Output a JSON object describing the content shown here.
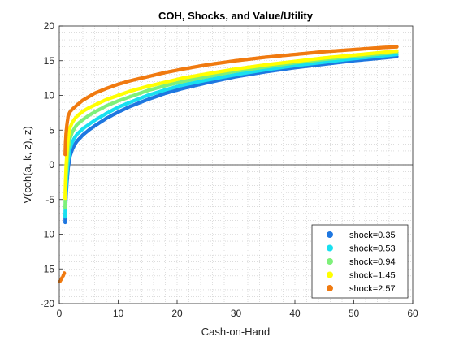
{
  "chart_data": {
    "type": "scatter",
    "title": "COH, Shocks, and Value/Utility",
    "xlabel": "Cash-on-Hand",
    "ylabel": "V(coh(a, k, z), z)",
    "xlim": [
      0,
      60
    ],
    "ylim": [
      -20,
      20
    ],
    "xticks": [
      0,
      10,
      20,
      30,
      40,
      50,
      60
    ],
    "yticks": [
      -20,
      -15,
      -10,
      -5,
      0,
      5,
      10,
      15,
      20
    ],
    "grid": "minor-dotted",
    "zero_line": true,
    "legend_position": "bottom-right",
    "series": [
      {
        "name": "shock=0.35",
        "color": "#1f77e0",
        "x": [
          1.0,
          1.05,
          1.15,
          1.3,
          1.5,
          1.8,
          2.2,
          2.6,
          3,
          4,
          5,
          6,
          8,
          10,
          12,
          15,
          18,
          21,
          25,
          30,
          35,
          40,
          45,
          50,
          55,
          57.3
        ],
        "y": [
          -8.3,
          -6.2,
          -4.5,
          -2.5,
          -0.5,
          1.2,
          2.2,
          2.9,
          3.4,
          4.3,
          5.0,
          5.6,
          6.7,
          7.6,
          8.4,
          9.4,
          10.3,
          11.0,
          11.8,
          12.7,
          13.4,
          14.0,
          14.5,
          15.0,
          15.4,
          15.6
        ]
      },
      {
        "name": "shock=0.53",
        "color": "#18e0f0",
        "x": [
          1.0,
          1.05,
          1.15,
          1.3,
          1.5,
          1.8,
          2.2,
          2.6,
          3,
          4,
          5,
          6,
          8,
          10,
          12,
          15,
          18,
          21,
          25,
          30,
          35,
          40,
          45,
          50,
          55,
          57.3
        ],
        "y": [
          -7.5,
          -5.3,
          -3.4,
          -1.3,
          0.6,
          2.3,
          3.3,
          3.9,
          4.4,
          5.2,
          5.8,
          6.4,
          7.4,
          8.3,
          9.0,
          10.0,
          10.8,
          11.5,
          12.2,
          13.0,
          13.7,
          14.3,
          14.8,
          15.3,
          15.7,
          15.9
        ]
      },
      {
        "name": "shock=0.94",
        "color": "#7ef07a",
        "x": [
          1.0,
          1.05,
          1.15,
          1.3,
          1.5,
          1.8,
          2.2,
          2.6,
          3,
          4,
          5,
          6,
          8,
          10,
          12,
          15,
          18,
          21,
          25,
          30,
          35,
          40,
          45,
          50,
          55,
          57.3
        ],
        "y": [
          -6.2,
          -4.0,
          -2.0,
          0.2,
          2.2,
          3.8,
          4.7,
          5.3,
          5.8,
          6.5,
          7.1,
          7.6,
          8.5,
          9.2,
          9.8,
          10.7,
          11.4,
          12.0,
          12.7,
          13.5,
          14.1,
          14.7,
          15.2,
          15.6,
          16.0,
          16.2
        ]
      },
      {
        "name": "shock=1.45",
        "color": "#ffff00",
        "x": [
          1.0,
          1.05,
          1.15,
          1.3,
          1.5,
          1.8,
          2.2,
          2.6,
          3,
          4,
          5,
          6,
          8,
          10,
          12,
          15,
          18,
          21,
          25,
          30,
          35,
          40,
          45,
          50,
          55,
          57.3
        ],
        "y": [
          -4.8,
          -2.6,
          -0.4,
          1.8,
          3.8,
          5.3,
          6.1,
          6.6,
          7.0,
          7.7,
          8.2,
          8.6,
          9.4,
          10.0,
          10.6,
          11.3,
          11.9,
          12.5,
          13.1,
          13.8,
          14.4,
          14.9,
          15.4,
          15.8,
          16.2,
          16.4
        ]
      },
      {
        "name": "shock=2.57",
        "color": "#f07a10",
        "x": [
          0.1,
          0.25,
          0.45,
          0.65,
          0.85,
          1.0,
          1.05,
          1.15,
          1.3,
          1.5,
          1.8,
          2.2,
          2.6,
          3,
          4,
          5,
          6,
          8,
          10,
          12,
          15,
          18,
          21,
          25,
          30,
          35,
          40,
          45,
          50,
          55,
          57.3
        ],
        "y": [
          -16.8,
          -16.6,
          -16.3,
          -16.0,
          -15.6,
          1.5,
          3.0,
          4.5,
          5.8,
          7.0,
          7.6,
          8.0,
          8.3,
          8.6,
          9.3,
          9.8,
          10.3,
          11.0,
          11.6,
          12.1,
          12.7,
          13.3,
          13.8,
          14.4,
          15.0,
          15.5,
          15.9,
          16.3,
          16.6,
          16.9,
          17.0
        ]
      }
    ]
  }
}
